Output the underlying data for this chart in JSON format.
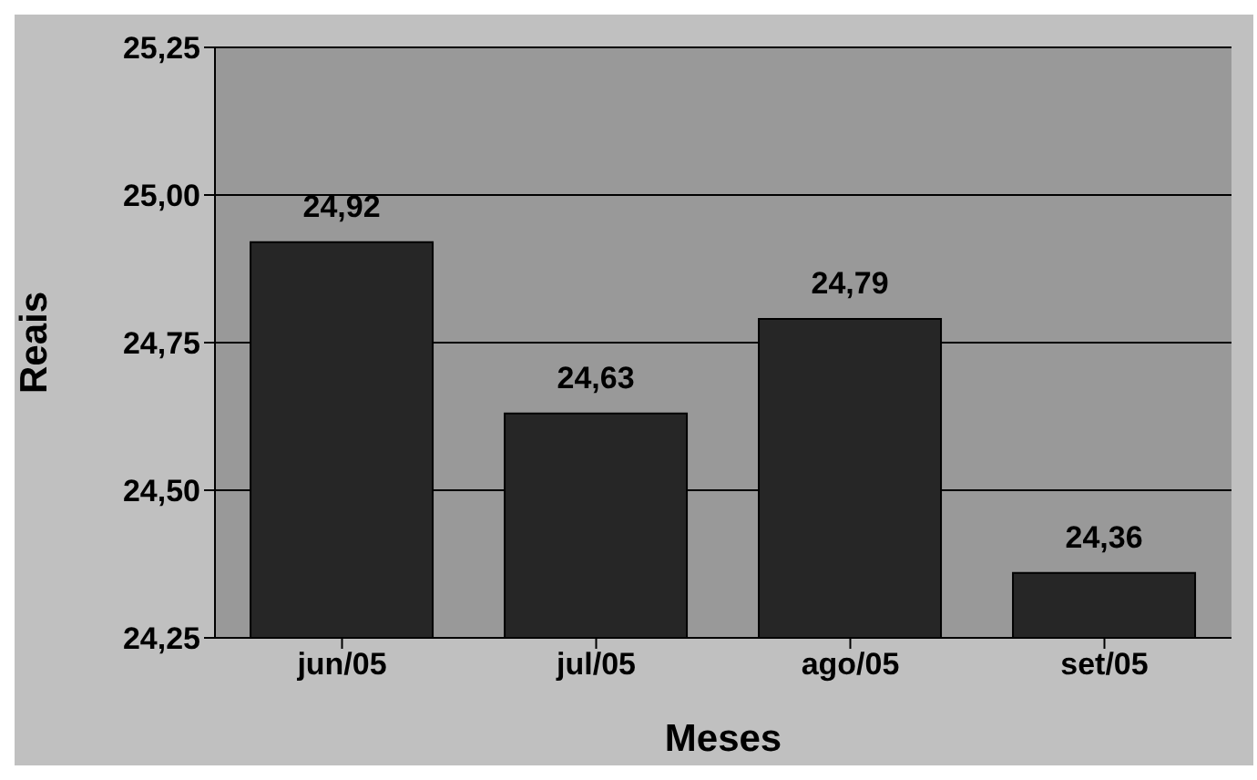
{
  "chart_data": {
    "type": "bar",
    "xlabel": "Meses",
    "ylabel": "Reais",
    "categories": [
      "jun/05",
      "jul/05",
      "ago/05",
      "set/05"
    ],
    "values": [
      24.92,
      24.63,
      24.79,
      24.36
    ],
    "color": "#262626",
    "ylim": [
      24.25,
      25.25
    ],
    "yticks": [
      {
        "value": 24.25,
        "label": "24,25"
      },
      {
        "value": 24.5,
        "label": "24,50"
      },
      {
        "value": 24.75,
        "label": "24,75"
      },
      {
        "value": 25,
        "label": "25,00"
      },
      {
        "value": 25.25,
        "label": "25,25"
      }
    ],
    "grid": "y",
    "value_labels": [
      "24,92",
      "24,63",
      "24,79",
      "24,36"
    ]
  }
}
